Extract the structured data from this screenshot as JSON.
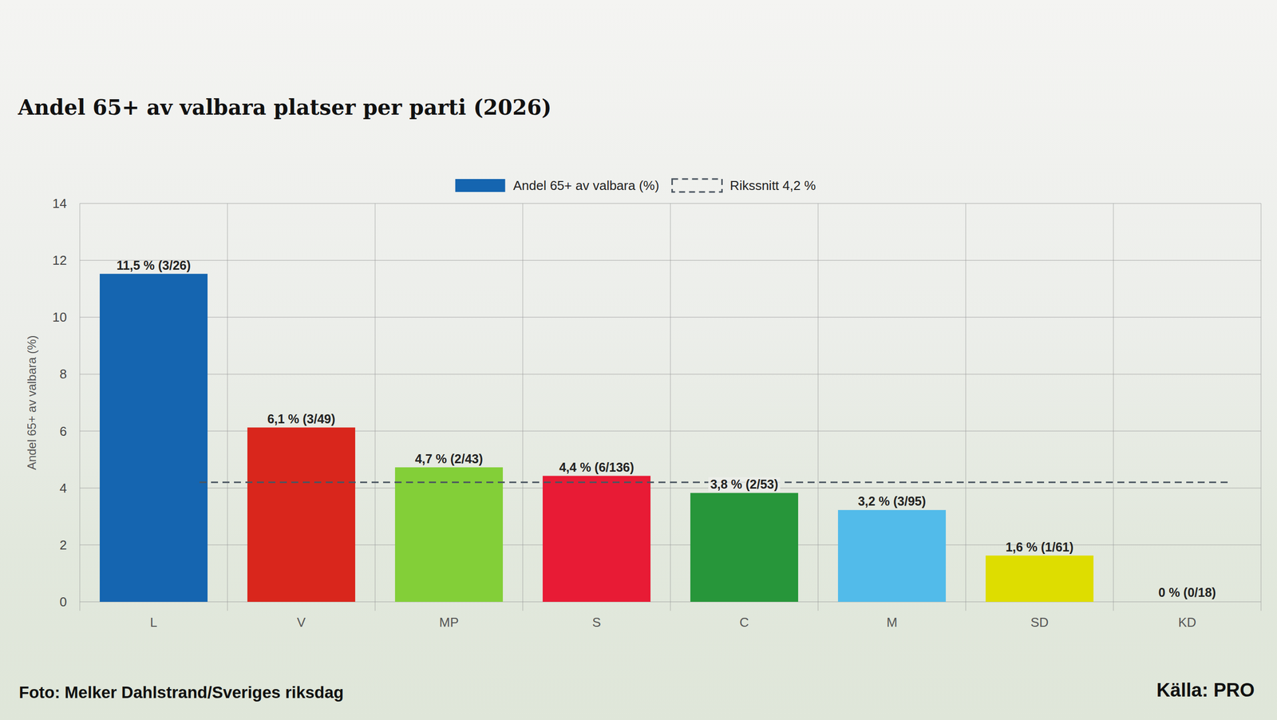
{
  "chart_data": {
    "type": "bar",
    "title": "Andel 65+ av valbara platser per parti (2026)",
    "y_label": "Andel 65+ av valbara (%)",
    "categories": [
      "L",
      "V",
      "MP",
      "S",
      "C",
      "M",
      "SD",
      "KD"
    ],
    "series": [
      {
        "name": "Andel 65+ av valbara (%)",
        "color": "#1565b0",
        "colors": [
          "#1565b0",
          "#d9261c",
          "#83cf38",
          "#e81b35",
          "#27963a",
          "#52bbea",
          "#dedd00",
          "#dc3a3a"
        ],
        "values": [
          11.5,
          6.1,
          4.7,
          4.4,
          3.8,
          3.2,
          1.6,
          0
        ],
        "value_labels": [
          "11,5 % (3/26)",
          "6,1 % (3/49)",
          "4,7 % (2/43)",
          "4,4 % (6/136)",
          "3,8 % (2/53)",
          "3,2 % (3/95)",
          "1,6 % (1/61)",
          "0 % (0/18)"
        ]
      }
    ],
    "reference_line": {
      "name": "Rikssnitt 4,2 %",
      "value": 4.2
    },
    "ylim": [
      0,
      14
    ],
    "yticks": [
      0,
      2,
      4,
      6,
      8,
      10,
      12,
      14
    ],
    "grid": true,
    "data_labels": true,
    "legend": "top",
    "photo_credit": "Foto: Melker Dahlstrand/Sveriges riksdag",
    "source": "Källa: PRO"
  }
}
